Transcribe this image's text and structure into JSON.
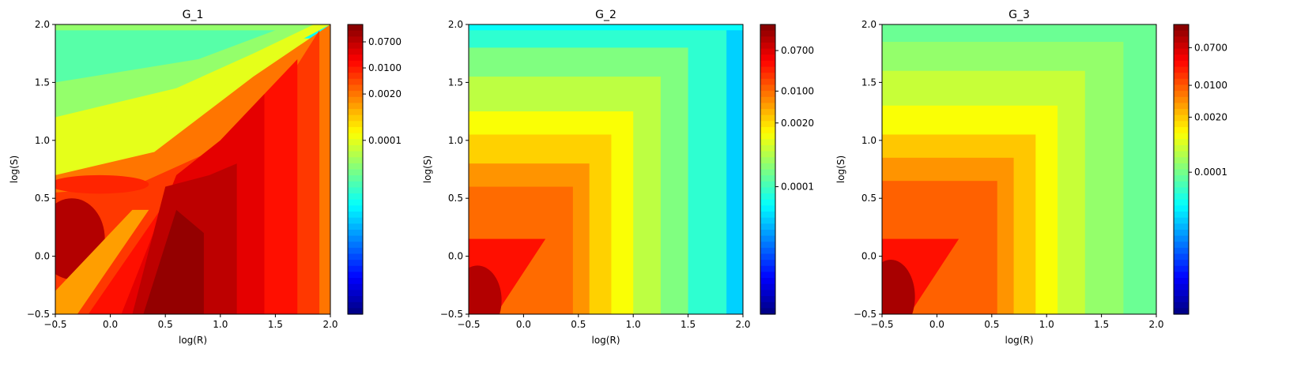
{
  "chart_data": [
    {
      "type": "heatmap",
      "title": "G_1",
      "xlabel": "log(R)",
      "ylabel": "log(S)",
      "xlim": [
        -0.5,
        2.0
      ],
      "ylim": [
        -0.5,
        2.0
      ],
      "xticks": [
        "-0.5",
        "0.0",
        "0.5",
        "1.0",
        "1.5",
        "2.0"
      ],
      "yticks": [
        "-0.5",
        "0.0",
        "0.5",
        "1.0",
        "1.5",
        "2.0"
      ],
      "colormap": "jet",
      "colorbar_ticks": [
        "0.0700",
        "0.0100",
        "0.0020",
        "0.0001"
      ],
      "colorbar_tick_positions": [
        0.06,
        0.15,
        0.24,
        0.4
      ],
      "field": {
        "background_level": 0.6,
        "regions": [
          {
            "shape": "poly",
            "points": [
              [
                -0.5,
                1.88
              ],
              [
                2.0,
                1.88
              ],
              [
                2.0,
                2.0
              ],
              [
                -0.5,
                2.0
              ]
            ],
            "level": 0.38
          },
          {
            "shape": "poly",
            "points": [
              [
                -0.5,
                1.0
              ],
              [
                0.7,
                1.35
              ],
              [
                1.5,
                1.75
              ],
              [
                2.0,
                2.0
              ],
              [
                -0.5,
                2.0
              ]
            ],
            "level": 0.6
          },
          {
            "shape": "poly",
            "points": [
              [
                -0.5,
                1.2
              ],
              [
                0.6,
                1.45
              ],
              [
                1.3,
                1.75
              ],
              [
                1.85,
                2.0
              ],
              [
                -0.5,
                2.0
              ]
            ],
            "level": 0.52
          },
          {
            "shape": "poly",
            "points": [
              [
                -0.5,
                1.5
              ],
              [
                0.8,
                1.7
              ],
              [
                1.5,
                1.95
              ],
              [
                -0.5,
                1.95
              ]
            ],
            "level": 0.46
          },
          {
            "shape": "poly",
            "points": [
              [
                -0.5,
                0.7
              ],
              [
                0.4,
                0.9
              ],
              [
                1.3,
                1.55
              ],
              [
                2.0,
                2.0
              ],
              [
                2.0,
                -0.5
              ],
              [
                -0.5,
                -0.5
              ]
            ],
            "level": 0.76
          },
          {
            "shape": "poly",
            "points": [
              [
                -0.5,
                -0.5
              ],
              [
                -0.5,
                0.55
              ],
              [
                0.2,
                0.6
              ],
              [
                0.9,
                0.9
              ],
              [
                1.6,
                1.5
              ],
              [
                1.9,
                1.95
              ],
              [
                1.9,
                -0.5
              ]
            ],
            "level": 0.82
          },
          {
            "shape": "poly",
            "points": [
              [
                -0.2,
                -0.5
              ],
              [
                0.6,
                0.6
              ],
              [
                1.2,
                1.2
              ],
              [
                1.7,
                1.7
              ],
              [
                1.7,
                -0.5
              ]
            ],
            "level": 0.86
          },
          {
            "shape": "poly",
            "points": [
              [
                0.1,
                -0.5
              ],
              [
                0.6,
                0.7
              ],
              [
                1.0,
                1.0
              ],
              [
                1.4,
                1.4
              ],
              [
                1.4,
                -0.5
              ]
            ],
            "level": 0.9
          },
          {
            "shape": "poly",
            "points": [
              [
                0.2,
                -0.5
              ],
              [
                0.5,
                0.6
              ],
              [
                0.9,
                0.7
              ],
              [
                1.15,
                0.8
              ],
              [
                1.15,
                -0.5
              ]
            ],
            "level": 0.94
          },
          {
            "shape": "poly",
            "points": [
              [
                0.3,
                -0.5
              ],
              [
                0.6,
                0.4
              ],
              [
                0.85,
                0.2
              ],
              [
                0.85,
                -0.5
              ]
            ],
            "level": 0.98
          },
          {
            "shape": "ellipse",
            "cx": -0.35,
            "cy": 0.15,
            "rx": 0.3,
            "ry": 0.35,
            "level": 0.95
          },
          {
            "shape": "ellipse",
            "cx": -0.1,
            "cy": 0.62,
            "rx": 0.45,
            "ry": 0.08,
            "level": 0.84
          },
          {
            "shape": "poly",
            "points": [
              [
                -0.5,
                -0.5
              ],
              [
                -0.5,
                -0.3
              ],
              [
                0.2,
                0.4
              ],
              [
                0.35,
                0.4
              ],
              [
                -0.3,
                -0.5
              ]
            ],
            "level": 0.72
          }
        ]
      }
    },
    {
      "type": "heatmap",
      "title": "G_2",
      "xlabel": "log(R)",
      "ylabel": "log(S)",
      "xlim": [
        -0.5,
        2.0
      ],
      "ylim": [
        -0.5,
        2.0
      ],
      "xticks": [
        "-0.5",
        "0.0",
        "0.5",
        "1.0",
        "1.5",
        "2.0"
      ],
      "yticks": [
        "-0.5",
        "0.0",
        "0.5",
        "1.0",
        "1.5",
        "2.0"
      ],
      "colormap": "jet",
      "colorbar_ticks": [
        "0.0700",
        "0.0100",
        "0.0020",
        "0.0001"
      ],
      "colorbar_tick_positions": [
        0.09,
        0.23,
        0.34,
        0.56
      ],
      "field": {
        "background_level": 0.4,
        "regions": [
          {
            "shape": "rect",
            "x0": -0.5,
            "y0": -0.5,
            "x1": 1.85,
            "y1": 1.95,
            "level": 0.42
          },
          {
            "shape": "rect",
            "x0": -0.5,
            "y0": -0.5,
            "x1": 1.5,
            "y1": 1.8,
            "level": 0.5
          },
          {
            "shape": "rect",
            "x0": -0.5,
            "y0": -0.5,
            "x1": 1.25,
            "y1": 1.55,
            "level": 0.56
          },
          {
            "shape": "rect",
            "x0": -0.5,
            "y0": -0.5,
            "x1": 1.0,
            "y1": 1.25,
            "level": 0.62
          },
          {
            "shape": "rect",
            "x0": -0.5,
            "y0": -0.5,
            "x1": 0.8,
            "y1": 1.05,
            "level": 0.67
          },
          {
            "shape": "rect",
            "x0": -0.5,
            "y0": -0.5,
            "x1": 0.6,
            "y1": 0.8,
            "level": 0.73
          },
          {
            "shape": "rect",
            "x0": -0.5,
            "y0": -0.5,
            "x1": 0.45,
            "y1": 0.6,
            "level": 0.77
          },
          {
            "shape": "poly",
            "points": [
              [
                -0.5,
                -0.5
              ],
              [
                -0.5,
                0.15
              ],
              [
                0.2,
                0.15
              ],
              [
                -0.25,
                -0.5
              ]
            ],
            "level": 0.86
          },
          {
            "shape": "ellipse",
            "cx": -0.42,
            "cy": -0.38,
            "rx": 0.22,
            "ry": 0.3,
            "level": 0.95
          },
          {
            "shape": "rect",
            "x0": 1.85,
            "y0": -0.5,
            "x1": 2.0,
            "y1": 2.0,
            "level": 0.33
          },
          {
            "shape": "rect",
            "x0": -0.5,
            "y0": 1.95,
            "x1": 2.0,
            "y1": 2.0,
            "level": 0.38
          }
        ]
      }
    },
    {
      "type": "heatmap",
      "title": "G_3",
      "xlabel": "log(R)",
      "ylabel": "log(S)",
      "xlim": [
        -0.5,
        2.0
      ],
      "ylim": [
        -0.5,
        2.0
      ],
      "xticks": [
        "-0.5",
        "0.0",
        "0.5",
        "1.0",
        "1.5",
        "2.0"
      ],
      "yticks": [
        "-0.5",
        "0.0",
        "0.5",
        "1.0",
        "1.5",
        "2.0"
      ],
      "colormap": "jet",
      "colorbar_ticks": [
        "0.0700",
        "0.0100",
        "0.0020",
        "0.0001"
      ],
      "colorbar_tick_positions": [
        0.08,
        0.21,
        0.32,
        0.51
      ],
      "field": {
        "background_level": 0.48,
        "regions": [
          {
            "shape": "rect",
            "x0": -0.5,
            "y0": -0.5,
            "x1": 1.7,
            "y1": 1.85,
            "level": 0.52
          },
          {
            "shape": "rect",
            "x0": -0.5,
            "y0": -0.5,
            "x1": 1.35,
            "y1": 1.6,
            "level": 0.57
          },
          {
            "shape": "rect",
            "x0": -0.5,
            "y0": -0.5,
            "x1": 1.1,
            "y1": 1.3,
            "level": 0.62
          },
          {
            "shape": "rect",
            "x0": -0.5,
            "y0": -0.5,
            "x1": 0.9,
            "y1": 1.05,
            "level": 0.68
          },
          {
            "shape": "rect",
            "x0": -0.5,
            "y0": -0.5,
            "x1": 0.7,
            "y1": 0.85,
            "level": 0.73
          },
          {
            "shape": "rect",
            "x0": -0.5,
            "y0": -0.5,
            "x1": 0.55,
            "y1": 0.65,
            "level": 0.78
          },
          {
            "shape": "poly",
            "points": [
              [
                -0.5,
                -0.5
              ],
              [
                -0.5,
                0.15
              ],
              [
                0.2,
                0.15
              ],
              [
                -0.25,
                -0.5
              ]
            ],
            "level": 0.86
          },
          {
            "shape": "ellipse",
            "cx": -0.42,
            "cy": -0.35,
            "rx": 0.22,
            "ry": 0.32,
            "level": 0.96
          }
        ]
      }
    }
  ]
}
